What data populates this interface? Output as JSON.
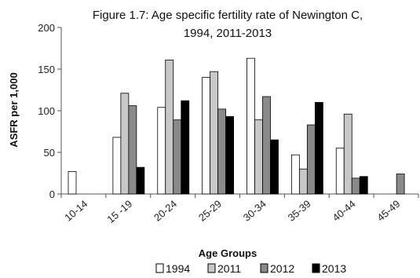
{
  "chart_data": {
    "type": "bar",
    "title_lines": [
      "Figure 1.7: Age specific fertility rate of Newington C,",
      "1994, 2011-2013"
    ],
    "xlabel": "Age Groups",
    "ylabel": "ASFR per 1,000",
    "ylim": [
      0,
      200
    ],
    "yticks": [
      0,
      50,
      100,
      150,
      200
    ],
    "grid": false,
    "legend_position": "bottom",
    "categories": [
      "10-14",
      "15-19",
      "20-24",
      "25-29",
      "30-34",
      "35-39",
      "40-44",
      "45-49"
    ],
    "category_labels": [
      "10-14",
      "15 -19",
      "20-24",
      "25-29",
      "30-34",
      "35-39",
      "40-44",
      "45-49"
    ],
    "series": [
      {
        "name": "1994",
        "color": "#ffffff",
        "values": [
          27,
          68,
          104,
          140,
          163,
          47,
          55,
          null
        ]
      },
      {
        "name": "2011",
        "color": "#c8c8c8",
        "values": [
          null,
          121,
          161,
          147,
          89,
          30,
          96,
          null
        ]
      },
      {
        "name": "2012",
        "color": "#8a8a8a",
        "values": [
          null,
          106,
          89,
          102,
          117,
          83,
          19,
          24
        ]
      },
      {
        "name": "2013",
        "color": "#000000",
        "values": [
          null,
          32,
          112,
          93,
          65,
          110,
          21,
          null
        ]
      }
    ]
  }
}
